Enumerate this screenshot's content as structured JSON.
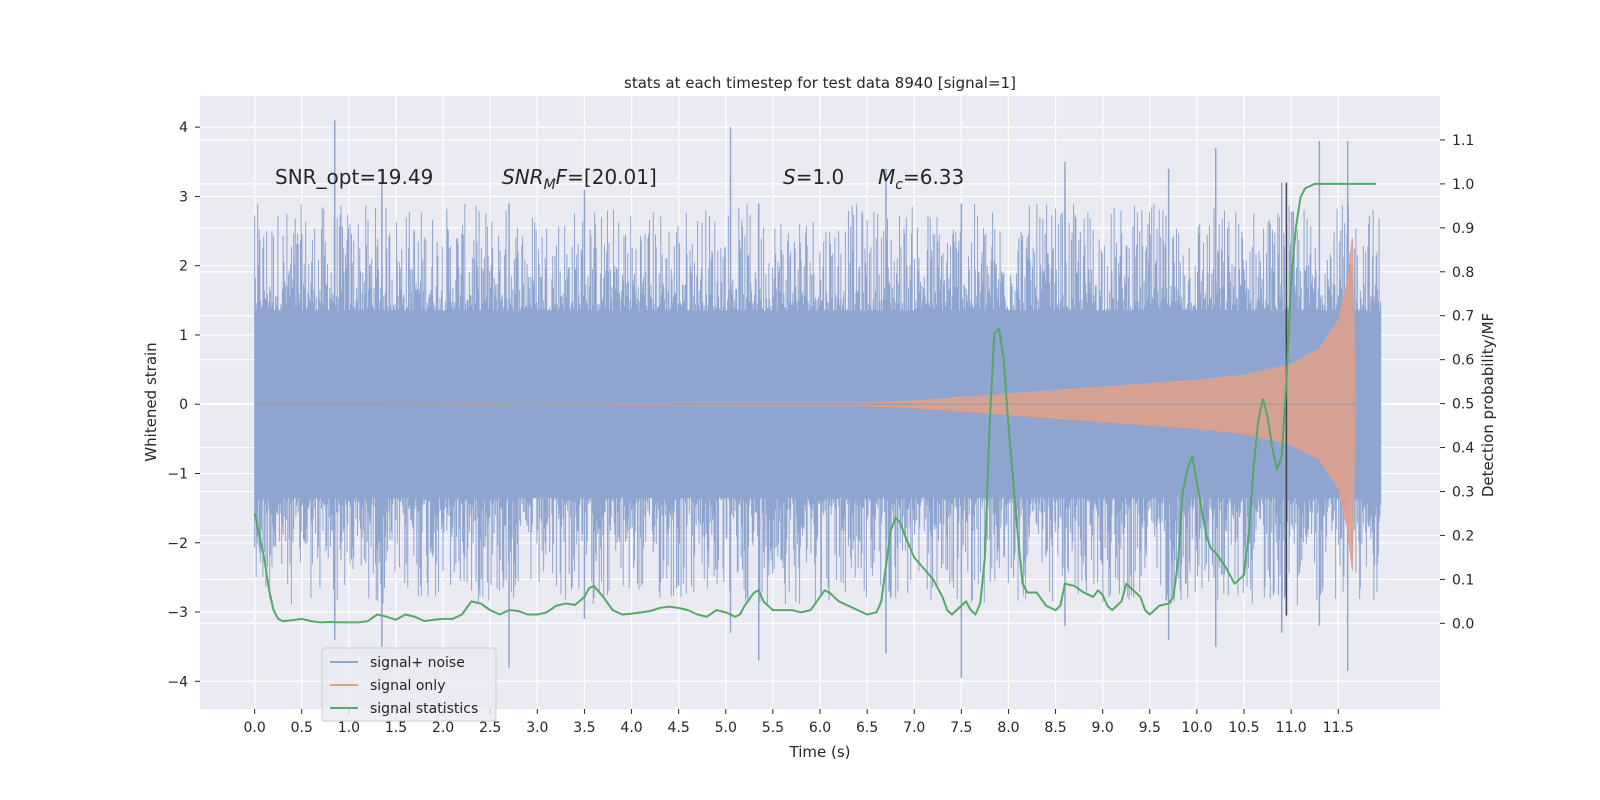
{
  "chart_data": {
    "type": "line",
    "title": "stats at each timestep for test data 8940 [signal=1]",
    "xlabel": "Time (s)",
    "ylabel": "Whitened strain",
    "ylabel_right": "Detection probability/MF",
    "xlim": [
      -0.58,
      12.58
    ],
    "ylim": [
      -4.4,
      4.45
    ],
    "ylim_right": [
      -0.195,
      1.2
    ],
    "x_ticks": [
      "0.0",
      "0.5",
      "1.0",
      "1.5",
      "2.0",
      "2.5",
      "3.0",
      "3.5",
      "4.0",
      "4.5",
      "5.0",
      "5.5",
      "6.0",
      "6.5",
      "7.0",
      "7.5",
      "8.0",
      "8.5",
      "9.0",
      "9.5",
      "10.0",
      "10.5",
      "11.0",
      "11.5"
    ],
    "y_ticks": [
      "−4",
      "−3",
      "−2",
      "−1",
      "0",
      "1",
      "2",
      "3",
      "4"
    ],
    "y_ticks_right": [
      "0.0",
      "0.1",
      "0.2",
      "0.3",
      "0.4",
      "0.5",
      "0.6",
      "0.7",
      "0.8",
      "0.9",
      "1.0",
      "1.1"
    ],
    "grid": true,
    "legend_position": "lower-left",
    "annotations": {
      "snr_opt": "SNR_opt=19.49",
      "snr_mf_prefix": "SNR",
      "snr_mf_sub": "M",
      "snr_mf_mid": "F",
      "snr_mf_value": "=[20.01]",
      "s_label": "S",
      "s_value": "=1.0",
      "mc_label": "M",
      "mc_sub": "c",
      "mc_value": "=6.33"
    },
    "vertical_marker_x": 10.95,
    "series": [
      {
        "name": "signal+ noise",
        "color": "#8fa5cf",
        "axis": "left",
        "duration": [
          0.0,
          11.95
        ],
        "band": [
          -1.35,
          1.35
        ],
        "spikes": [
          [
            0.85,
            4.1,
            -3.4
          ],
          [
            1.35,
            3.4,
            -3.5
          ],
          [
            2.7,
            2.9,
            -3.8
          ],
          [
            3.5,
            3.1,
            -3.1
          ],
          [
            5.05,
            4.0,
            -3.3
          ],
          [
            5.35,
            2.9,
            -3.7
          ],
          [
            6.7,
            3.4,
            -3.6
          ],
          [
            7.5,
            2.9,
            -3.95
          ],
          [
            8.6,
            3.5,
            -3.2
          ],
          [
            9.7,
            3.4,
            -3.4
          ],
          [
            10.2,
            3.7,
            -3.5
          ],
          [
            10.9,
            3.2,
            -3.3
          ],
          [
            11.3,
            3.8,
            -3.2
          ],
          [
            11.6,
            3.8,
            -3.85
          ]
        ]
      },
      {
        "name": "signal only",
        "color": "#e0a088",
        "axis": "left",
        "envelope": [
          [
            0.0,
            0.0
          ],
          [
            6.5,
            0.02
          ],
          [
            7.0,
            0.05
          ],
          [
            8.0,
            0.15
          ],
          [
            9.0,
            0.25
          ],
          [
            10.0,
            0.35
          ],
          [
            10.5,
            0.42
          ],
          [
            11.0,
            0.58
          ],
          [
            11.3,
            0.8
          ],
          [
            11.5,
            1.2
          ],
          [
            11.6,
            1.8
          ],
          [
            11.65,
            2.4
          ],
          [
            11.68,
            0.0
          ]
        ],
        "end": 11.68
      },
      {
        "name": "signal statistics",
        "color": "#55a868",
        "axis": "right",
        "points": [
          [
            0.0,
            0.25
          ],
          [
            0.05,
            0.2
          ],
          [
            0.1,
            0.15
          ],
          [
            0.15,
            0.08
          ],
          [
            0.2,
            0.03
          ],
          [
            0.25,
            0.01
          ],
          [
            0.3,
            0.005
          ],
          [
            0.4,
            0.007
          ],
          [
            0.5,
            0.01
          ],
          [
            0.6,
            0.005
          ],
          [
            0.7,
            0.002
          ],
          [
            0.8,
            0.003
          ],
          [
            0.9,
            0.002
          ],
          [
            1.0,
            0.002
          ],
          [
            1.1,
            0.002
          ],
          [
            1.2,
            0.005
          ],
          [
            1.3,
            0.02
          ],
          [
            1.4,
            0.015
          ],
          [
            1.5,
            0.008
          ],
          [
            1.6,
            0.02
          ],
          [
            1.7,
            0.015
          ],
          [
            1.8,
            0.005
          ],
          [
            1.9,
            0.008
          ],
          [
            2.0,
            0.01
          ],
          [
            2.1,
            0.01
          ],
          [
            2.2,
            0.02
          ],
          [
            2.25,
            0.035
          ],
          [
            2.3,
            0.05
          ],
          [
            2.4,
            0.045
          ],
          [
            2.5,
            0.03
          ],
          [
            2.6,
            0.02
          ],
          [
            2.7,
            0.03
          ],
          [
            2.8,
            0.028
          ],
          [
            2.9,
            0.02
          ],
          [
            3.0,
            0.02
          ],
          [
            3.1,
            0.025
          ],
          [
            3.2,
            0.04
          ],
          [
            3.3,
            0.045
          ],
          [
            3.4,
            0.042
          ],
          [
            3.5,
            0.06
          ],
          [
            3.55,
            0.08
          ],
          [
            3.6,
            0.085
          ],
          [
            3.7,
            0.06
          ],
          [
            3.8,
            0.03
          ],
          [
            3.9,
            0.02
          ],
          [
            4.0,
            0.022
          ],
          [
            4.1,
            0.025
          ],
          [
            4.2,
            0.028
          ],
          [
            4.3,
            0.035
          ],
          [
            4.4,
            0.038
          ],
          [
            4.5,
            0.035
          ],
          [
            4.6,
            0.03
          ],
          [
            4.7,
            0.02
          ],
          [
            4.8,
            0.015
          ],
          [
            4.9,
            0.03
          ],
          [
            5.0,
            0.025
          ],
          [
            5.1,
            0.015
          ],
          [
            5.15,
            0.02
          ],
          [
            5.2,
            0.04
          ],
          [
            5.3,
            0.07
          ],
          [
            5.35,
            0.075
          ],
          [
            5.4,
            0.05
          ],
          [
            5.5,
            0.03
          ],
          [
            5.6,
            0.03
          ],
          [
            5.7,
            0.03
          ],
          [
            5.8,
            0.025
          ],
          [
            5.9,
            0.03
          ],
          [
            6.0,
            0.06
          ],
          [
            6.05,
            0.075
          ],
          [
            6.1,
            0.07
          ],
          [
            6.2,
            0.05
          ],
          [
            6.3,
            0.04
          ],
          [
            6.4,
            0.03
          ],
          [
            6.5,
            0.02
          ],
          [
            6.6,
            0.025
          ],
          [
            6.65,
            0.05
          ],
          [
            6.7,
            0.13
          ],
          [
            6.75,
            0.21
          ],
          [
            6.8,
            0.24
          ],
          [
            6.85,
            0.23
          ],
          [
            6.9,
            0.2
          ],
          [
            7.0,
            0.15
          ],
          [
            7.1,
            0.125
          ],
          [
            7.2,
            0.1
          ],
          [
            7.3,
            0.06
          ],
          [
            7.35,
            0.03
          ],
          [
            7.4,
            0.02
          ],
          [
            7.5,
            0.04
          ],
          [
            7.55,
            0.05
          ],
          [
            7.6,
            0.03
          ],
          [
            7.65,
            0.02
          ],
          [
            7.7,
            0.045
          ],
          [
            7.75,
            0.15
          ],
          [
            7.8,
            0.45
          ],
          [
            7.85,
            0.66
          ],
          [
            7.9,
            0.67
          ],
          [
            7.95,
            0.6
          ],
          [
            8.0,
            0.45
          ],
          [
            8.1,
            0.2
          ],
          [
            8.15,
            0.09
          ],
          [
            8.2,
            0.07
          ],
          [
            8.3,
            0.07
          ],
          [
            8.4,
            0.04
          ],
          [
            8.5,
            0.03
          ],
          [
            8.55,
            0.04
          ],
          [
            8.6,
            0.09
          ],
          [
            8.7,
            0.085
          ],
          [
            8.8,
            0.07
          ],
          [
            8.9,
            0.06
          ],
          [
            8.95,
            0.075
          ],
          [
            9.0,
            0.065
          ],
          [
            9.05,
            0.04
          ],
          [
            9.1,
            0.03
          ],
          [
            9.2,
            0.05
          ],
          [
            9.25,
            0.09
          ],
          [
            9.3,
            0.08
          ],
          [
            9.4,
            0.06
          ],
          [
            9.45,
            0.03
          ],
          [
            9.5,
            0.02
          ],
          [
            9.6,
            0.04
          ],
          [
            9.7,
            0.045
          ],
          [
            9.75,
            0.06
          ],
          [
            9.8,
            0.14
          ],
          [
            9.85,
            0.3
          ],
          [
            9.9,
            0.35
          ],
          [
            9.95,
            0.38
          ],
          [
            10.0,
            0.32
          ],
          [
            10.1,
            0.2
          ],
          [
            10.15,
            0.17
          ],
          [
            10.2,
            0.16
          ],
          [
            10.3,
            0.13
          ],
          [
            10.4,
            0.09
          ],
          [
            10.5,
            0.11
          ],
          [
            10.55,
            0.2
          ],
          [
            10.6,
            0.35
          ],
          [
            10.65,
            0.46
          ],
          [
            10.7,
            0.51
          ],
          [
            10.75,
            0.47
          ],
          [
            10.8,
            0.4
          ],
          [
            10.85,
            0.35
          ],
          [
            10.9,
            0.38
          ],
          [
            10.95,
            0.55
          ],
          [
            11.0,
            0.78
          ],
          [
            11.05,
            0.9
          ],
          [
            11.1,
            0.97
          ],
          [
            11.15,
            0.99
          ],
          [
            11.25,
            1.0
          ],
          [
            11.4,
            1.0
          ],
          [
            11.6,
            1.0
          ],
          [
            11.9,
            1.0
          ]
        ]
      }
    ]
  }
}
